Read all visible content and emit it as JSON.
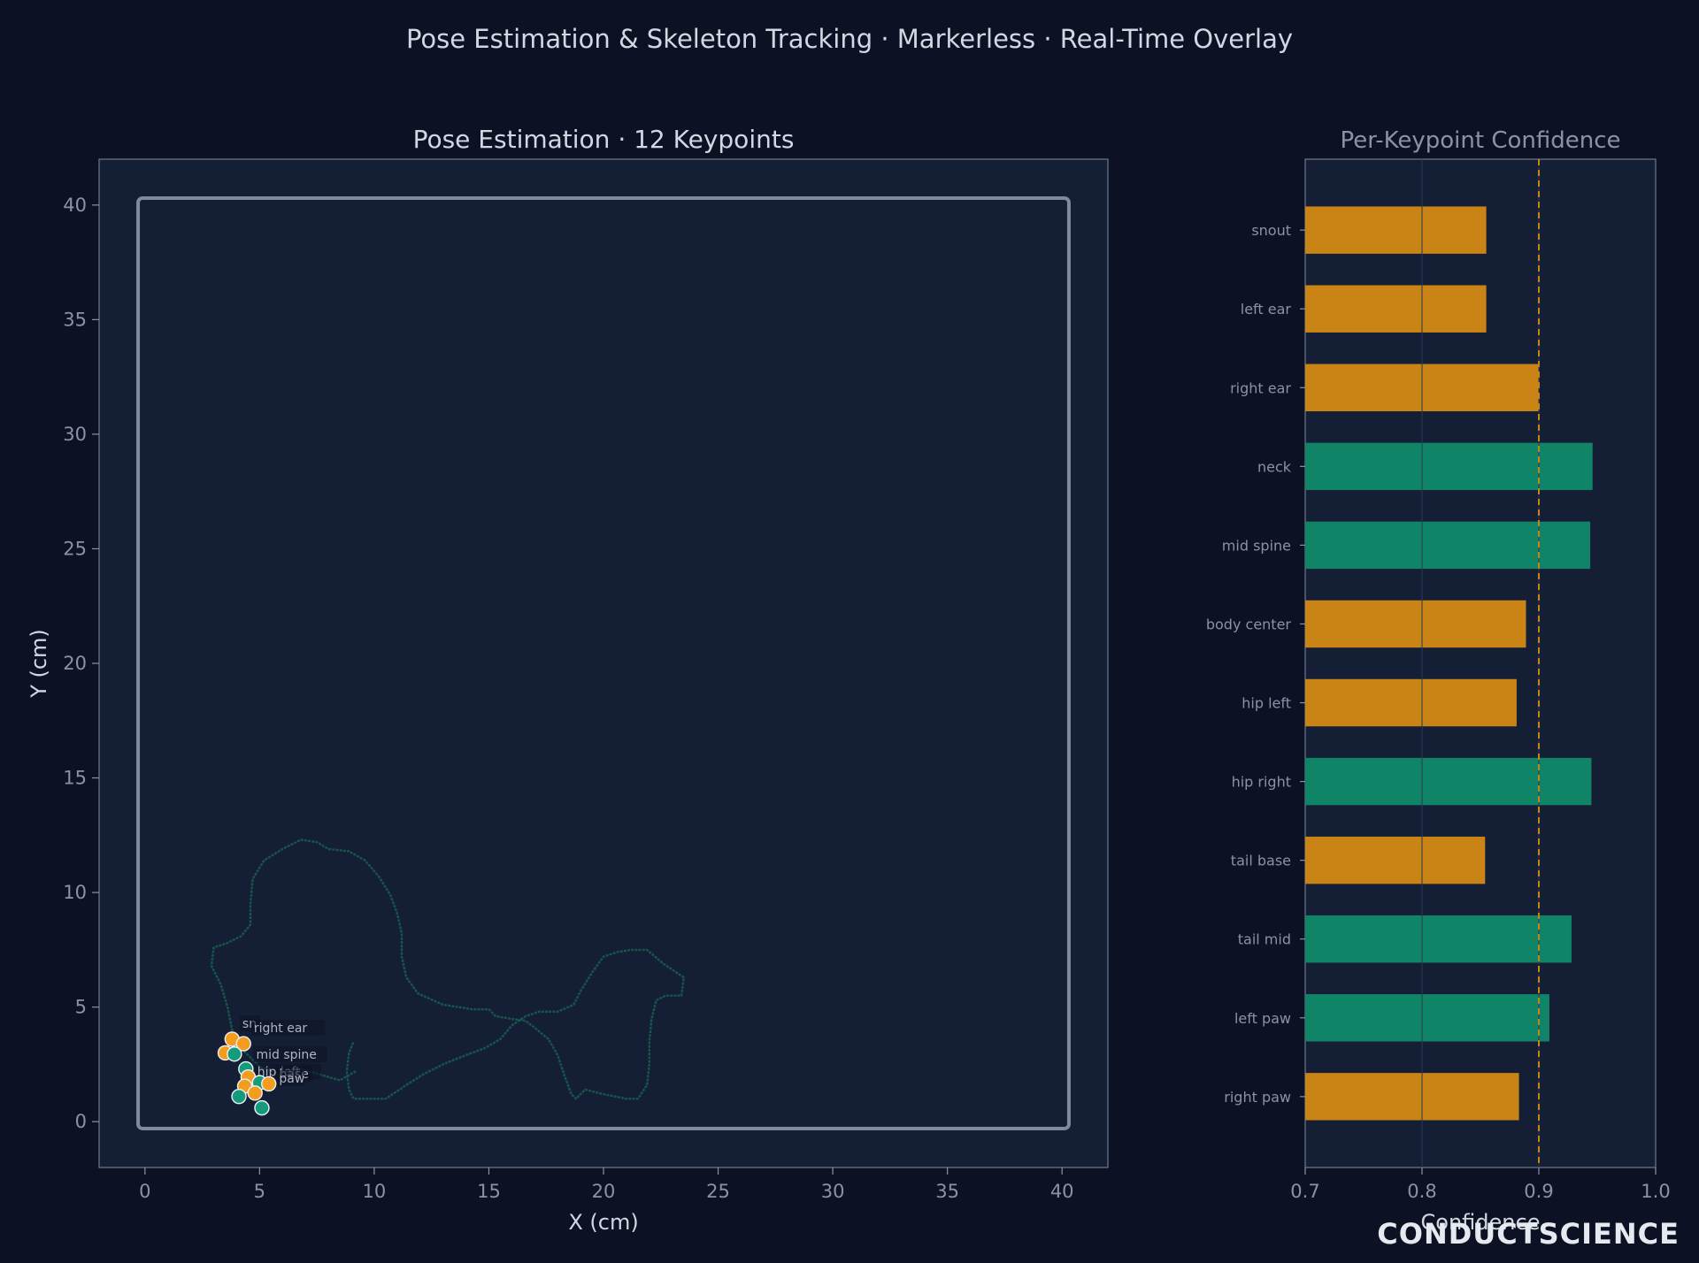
{
  "suptitle": "Pose Estimation & Skeleton Tracking · Markerless · Real-Time Overlay",
  "watermark": "CONDUCTSCIENCE",
  "colors": {
    "background": "#0c1224",
    "panel": "#141f35",
    "text": "#d2d8e2",
    "muted": "#8a93a6",
    "orange": "#f39c1e",
    "teal": "#139b7c",
    "bar_orange": "#c98415",
    "bar_teal": "#0f8466",
    "threshold": "#c98415",
    "arena": "#7f8a9c",
    "trajectory": "#17564e"
  },
  "chart_data": [
    {
      "type": "scatter",
      "title": "Pose Estimation · 12 Keypoints",
      "xlabel": "X (cm)",
      "ylabel": "Y (cm)",
      "xlim": [
        -2,
        42
      ],
      "ylim": [
        -2,
        42
      ],
      "xticks": [
        "0",
        "5",
        "10",
        "15",
        "20",
        "25",
        "30",
        "35",
        "40"
      ],
      "yticks": [
        "0",
        "5",
        "10",
        "15",
        "20",
        "25",
        "30",
        "35",
        "40"
      ],
      "arena": {
        "x0": -0.3,
        "y0": -0.3,
        "x1": 40.3,
        "y1": 40.3
      },
      "trajectory": [
        [
          9.2,
          2.2
        ],
        [
          8.5,
          1.8
        ],
        [
          7.5,
          2.1
        ],
        [
          6.8,
          2.3
        ],
        [
          6.0,
          2.0
        ],
        [
          5.0,
          2.4
        ],
        [
          4.2,
          3.2
        ],
        [
          3.8,
          4.0
        ],
        [
          3.6,
          5.0
        ],
        [
          3.3,
          6.0
        ],
        [
          2.9,
          6.8
        ],
        [
          3.0,
          7.6
        ],
        [
          3.6,
          7.8
        ],
        [
          4.2,
          8.1
        ],
        [
          4.6,
          8.6
        ],
        [
          4.6,
          9.5
        ],
        [
          4.7,
          10.6
        ],
        [
          5.2,
          11.4
        ],
        [
          6.0,
          11.9
        ],
        [
          6.8,
          12.3
        ],
        [
          7.5,
          12.2
        ],
        [
          8.0,
          11.9
        ],
        [
          8.9,
          11.8
        ],
        [
          9.6,
          11.4
        ],
        [
          10.2,
          10.7
        ],
        [
          10.7,
          9.9
        ],
        [
          11.0,
          9.1
        ],
        [
          11.2,
          8.2
        ],
        [
          11.2,
          7.2
        ],
        [
          11.4,
          6.3
        ],
        [
          11.9,
          5.6
        ],
        [
          13.0,
          5.1
        ],
        [
          14.3,
          4.9
        ],
        [
          15.0,
          4.9
        ],
        [
          15.3,
          4.6
        ],
        [
          15.9,
          4.5
        ],
        [
          16.6,
          4.4
        ],
        [
          17.0,
          4.1
        ],
        [
          17.6,
          3.6
        ],
        [
          18.0,
          2.9
        ],
        [
          18.3,
          2.0
        ],
        [
          18.6,
          1.2
        ],
        [
          18.8,
          1.0
        ],
        [
          19.2,
          1.4
        ],
        [
          20.0,
          1.2
        ],
        [
          21.0,
          1.0
        ],
        [
          21.5,
          1.0
        ],
        [
          21.9,
          1.6
        ],
        [
          22.0,
          2.5
        ],
        [
          22.0,
          3.5
        ],
        [
          22.1,
          4.5
        ],
        [
          22.3,
          5.3
        ],
        [
          22.7,
          5.5
        ],
        [
          23.4,
          5.5
        ],
        [
          23.5,
          6.3
        ],
        [
          22.6,
          6.9
        ],
        [
          21.9,
          7.5
        ],
        [
          21.2,
          7.5
        ],
        [
          20.6,
          7.4
        ],
        [
          20.0,
          7.2
        ],
        [
          19.5,
          6.5
        ],
        [
          19.0,
          5.7
        ],
        [
          18.7,
          5.1
        ],
        [
          18.0,
          4.8
        ],
        [
          17.2,
          4.8
        ],
        [
          16.6,
          4.6
        ],
        [
          16.0,
          4.2
        ],
        [
          15.5,
          3.6
        ],
        [
          14.8,
          3.2
        ],
        [
          14.0,
          2.9
        ],
        [
          13.0,
          2.5
        ],
        [
          12.2,
          2.1
        ],
        [
          11.4,
          1.6
        ],
        [
          10.5,
          1.0
        ],
        [
          9.5,
          1.0
        ],
        [
          9.1,
          1.0
        ],
        [
          8.9,
          1.4
        ],
        [
          8.8,
          2.2
        ],
        [
          8.9,
          3.0
        ],
        [
          9.1,
          3.5
        ]
      ],
      "keypoints": [
        {
          "name": "snout",
          "x": 3.8,
          "y": 3.6,
          "color": "orange"
        },
        {
          "name": "left ear",
          "x": 3.5,
          "y": 3.0,
          "color": "orange"
        },
        {
          "name": "right ear",
          "x": 4.3,
          "y": 3.4,
          "color": "orange"
        },
        {
          "name": "neck",
          "x": 3.9,
          "y": 2.95,
          "color": "teal"
        },
        {
          "name": "mid spine",
          "x": 4.4,
          "y": 2.3,
          "color": "teal"
        },
        {
          "name": "body center",
          "x": 4.5,
          "y": 1.95,
          "color": "orange"
        },
        {
          "name": "hip left",
          "x": 4.35,
          "y": 1.55,
          "color": "orange"
        },
        {
          "name": "hip right",
          "x": 5.0,
          "y": 1.7,
          "color": "teal"
        },
        {
          "name": "tail base",
          "x": 5.4,
          "y": 1.65,
          "color": "orange"
        },
        {
          "name": "tail mid",
          "x": 5.1,
          "y": 0.6,
          "color": "teal"
        },
        {
          "name": "left paw",
          "x": 4.1,
          "y": 1.1,
          "color": "teal"
        },
        {
          "name": "right paw",
          "x": 4.8,
          "y": 1.25,
          "color": "orange"
        }
      ],
      "labels": [
        {
          "text": "sn",
          "x": 4.25,
          "y": 4.1
        },
        {
          "text": "right ear",
          "x": 4.75,
          "y": 3.9
        },
        {
          "text": "mid spine",
          "x": 4.85,
          "y": 2.75
        },
        {
          "text": "hip left",
          "x": 4.9,
          "y": 2.0
        },
        {
          "text": "base",
          "x": 5.85,
          "y": 1.9
        },
        {
          "text": "paw",
          "x": 5.85,
          "y": 1.7
        }
      ]
    },
    {
      "type": "bar",
      "orientation": "horizontal",
      "title": "Per-Keypoint Confidence",
      "xlabel": "Confidence",
      "xlim": [
        0.7,
        1.0
      ],
      "xticks": [
        "0.7",
        "0.8",
        "0.9",
        "1.0"
      ],
      "threshold": 0.9,
      "categories": [
        "snout",
        "left ear",
        "right ear",
        "neck",
        "mid spine",
        "body center",
        "hip left",
        "hip right",
        "tail base",
        "tail mid",
        "left paw",
        "right paw"
      ],
      "values": [
        0.855,
        0.855,
        0.9,
        0.946,
        0.944,
        0.889,
        0.881,
        0.945,
        0.854,
        0.928,
        0.909,
        0.883
      ],
      "bar_colors": [
        "orange",
        "orange",
        "orange",
        "teal",
        "teal",
        "orange",
        "orange",
        "teal",
        "orange",
        "teal",
        "teal",
        "orange"
      ]
    }
  ]
}
